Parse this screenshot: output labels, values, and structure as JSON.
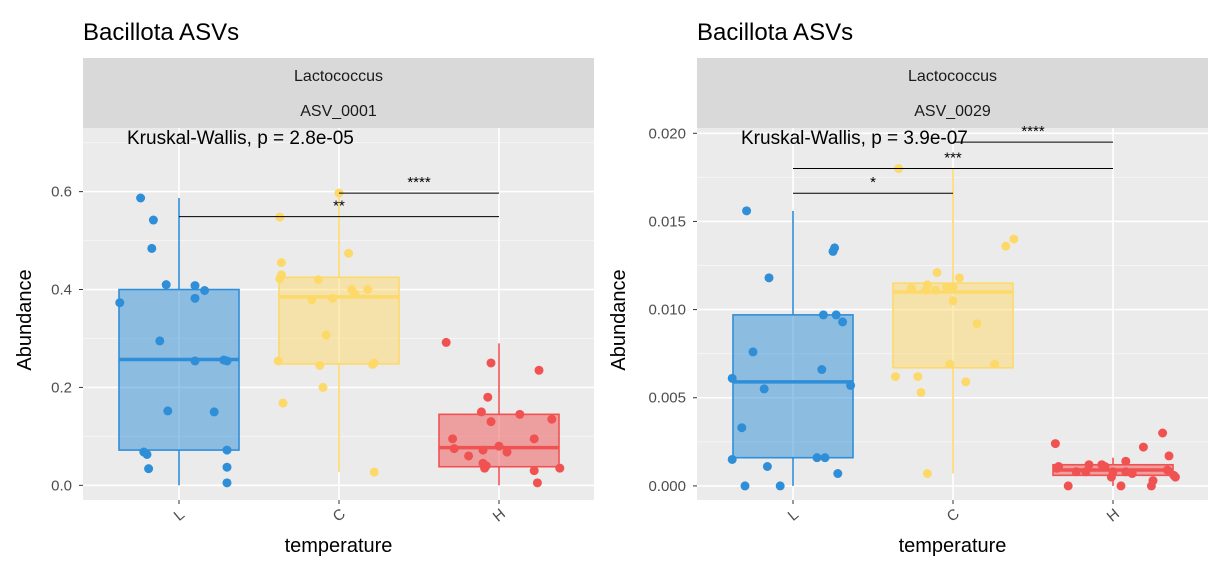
{
  "chart_data": [
    {
      "type": "box",
      "title": "Bacillota ASVs",
      "strip": [
        "Lactococcus",
        "ASV_0001"
      ],
      "xlabel": "temperature",
      "ylabel": "Abundance",
      "categories": [
        "L",
        "C",
        "H"
      ],
      "colors": {
        "L": "#2f8ed8",
        "C": "#fdd96a",
        "H": "#f05252"
      },
      "ylim": [
        -0.03,
        0.73
      ],
      "yticks": [
        0.0,
        0.2,
        0.4,
        0.6
      ],
      "ytick_labels": [
        "0.0",
        "0.2",
        "0.4",
        "0.6"
      ],
      "grid": true,
      "test_label": "Kruskal-Wallis, p = 2.8e-05",
      "boxes": [
        {
          "group": "L",
          "lower": 0.0,
          "q1": 0.072,
          "median": 0.257,
          "q3": 0.4,
          "upper": 0.587
        },
        {
          "group": "C",
          "lower": 0.027,
          "q1": 0.248,
          "median": 0.385,
          "q3": 0.425,
          "upper": 0.597
        },
        {
          "group": "H",
          "lower": 0.0,
          "q1": 0.038,
          "median": 0.077,
          "q3": 0.145,
          "upper": 0.29
        }
      ],
      "points": {
        "L": [
          [
            -0.37,
            0.373
          ],
          [
            -0.24,
            0.587
          ],
          [
            -0.16,
            0.542
          ],
          [
            -0.17,
            0.484
          ],
          [
            -0.12,
            0.295
          ],
          [
            -0.08,
            0.41
          ],
          [
            -0.22,
            0.068
          ],
          [
            -0.2,
            0.063
          ],
          [
            -0.19,
            0.034
          ],
          [
            -0.07,
            0.152
          ],
          [
            0.1,
            0.408
          ],
          [
            0.16,
            0.398
          ],
          [
            0.1,
            0.254
          ],
          [
            0.28,
            0.256
          ],
          [
            0.1,
            0.382
          ],
          [
            0.22,
            0.15
          ],
          [
            0.3,
            0.037
          ],
          [
            0.3,
            0.254
          ],
          [
            0.3,
            0.072
          ],
          [
            0.3,
            0.005
          ]
        ],
        "C": [
          [
            -0.38,
            0.254
          ],
          [
            -0.37,
            0.548
          ],
          [
            -0.37,
            0.422
          ],
          [
            -0.36,
            0.43
          ],
          [
            -0.36,
            0.455
          ],
          [
            -0.35,
            0.168
          ],
          [
            -0.17,
            0.379
          ],
          [
            -0.13,
            0.42
          ],
          [
            -0.12,
            0.245
          ],
          [
            -0.1,
            0.2
          ],
          [
            -0.08,
            0.307
          ],
          [
            -0.04,
            0.382
          ],
          [
            0.0,
            0.597
          ],
          [
            0.06,
            0.474
          ],
          [
            0.08,
            0.4
          ],
          [
            0.1,
            0.391
          ],
          [
            0.18,
            0.4
          ],
          [
            0.21,
            0.247
          ],
          [
            0.22,
            0.25
          ],
          [
            0.22,
            0.027
          ]
        ],
        "H": [
          [
            -0.33,
            0.292
          ],
          [
            -0.29,
            0.095
          ],
          [
            -0.28,
            0.075
          ],
          [
            -0.19,
            0.06
          ],
          [
            -0.11,
            0.15
          ],
          [
            -0.1,
            0.072
          ],
          [
            -0.1,
            0.045
          ],
          [
            -0.09,
            0.035
          ],
          [
            -0.08,
            0.04
          ],
          [
            -0.07,
            0.18
          ],
          [
            -0.05,
            0.13
          ],
          [
            -0.05,
            0.25
          ],
          [
            0.0,
            0.08
          ],
          [
            0.05,
            0.068
          ],
          [
            0.13,
            0.145
          ],
          [
            0.22,
            0.03
          ],
          [
            0.22,
            0.095
          ],
          [
            0.24,
            0.005
          ],
          [
            0.25,
            0.235
          ],
          [
            0.33,
            0.135
          ],
          [
            0.38,
            0.035
          ]
        ]
      },
      "comparisons": [
        {
          "from": "L",
          "to": "H",
          "y": 0.549,
          "label": "**"
        },
        {
          "from": "C",
          "to": "H",
          "y": 0.597,
          "label": "****"
        }
      ]
    },
    {
      "type": "box",
      "title": "Bacillota ASVs",
      "strip": [
        "Lactococcus",
        "ASV_0029"
      ],
      "xlabel": "temperature",
      "ylabel": "Abundance",
      "categories": [
        "L",
        "C",
        "H"
      ],
      "colors": {
        "L": "#2f8ed8",
        "C": "#fdd96a",
        "H": "#f05252"
      },
      "ylim": [
        -0.0008,
        0.0203
      ],
      "yticks": [
        0.0,
        0.005,
        0.01,
        0.015,
        0.02
      ],
      "ytick_labels": [
        "0.000",
        "0.005",
        "0.010",
        "0.015",
        "0.020"
      ],
      "grid": true,
      "test_label": "Kruskal-Wallis, p = 3.9e-07",
      "boxes": [
        {
          "group": "L",
          "lower": 0.0,
          "q1": 0.0016,
          "median": 0.0059,
          "q3": 0.0097,
          "upper": 0.0156
        },
        {
          "group": "C",
          "lower": 0.0007,
          "q1": 0.0067,
          "median": 0.011,
          "q3": 0.0115,
          "upper": 0.018
        },
        {
          "group": "H",
          "lower": 0.0,
          "q1": 0.0006,
          "median": 0.0009,
          "q3": 0.0012,
          "upper": 0.0016
        }
      ],
      "points": {
        "L": [
          [
            -0.38,
            0.0015
          ],
          [
            -0.38,
            0.0061
          ],
          [
            -0.32,
            0.0033
          ],
          [
            -0.3,
            0.0
          ],
          [
            -0.29,
            0.0156
          ],
          [
            -0.25,
            0.0076
          ],
          [
            -0.18,
            0.0055
          ],
          [
            -0.16,
            0.0011
          ],
          [
            -0.15,
            0.0118
          ],
          [
            -0.08,
            0.0
          ],
          [
            0.15,
            0.0016
          ],
          [
            0.18,
            0.0066
          ],
          [
            0.19,
            0.0097
          ],
          [
            0.2,
            0.0016
          ],
          [
            0.25,
            0.0133
          ],
          [
            0.26,
            0.0135
          ],
          [
            0.27,
            0.0097
          ],
          [
            0.28,
            0.0007
          ],
          [
            0.31,
            0.0093
          ],
          [
            0.36,
            0.0057
          ]
        ],
        "C": [
          [
            -0.36,
            0.0062
          ],
          [
            -0.34,
            0.018
          ],
          [
            -0.26,
            0.0112
          ],
          [
            -0.22,
            0.0062
          ],
          [
            -0.2,
            0.0053
          ],
          [
            -0.17,
            0.0111
          ],
          [
            -0.16,
            0.0007
          ],
          [
            -0.16,
            0.0114
          ],
          [
            -0.11,
            0.0111
          ],
          [
            -0.1,
            0.0121
          ],
          [
            -0.04,
            0.0113
          ],
          [
            -0.02,
            0.0069
          ],
          [
            0.0,
            0.0113
          ],
          [
            0.0,
            0.0105
          ],
          [
            0.04,
            0.0118
          ],
          [
            0.08,
            0.0059
          ],
          [
            0.15,
            0.0092
          ],
          [
            0.26,
            0.0069
          ],
          [
            0.33,
            0.0136
          ],
          [
            0.38,
            0.014
          ]
        ],
        "H": [
          [
            -0.36,
            0.0024
          ],
          [
            -0.35,
            0.001
          ],
          [
            -0.34,
            0.0011
          ],
          [
            -0.28,
            0.0
          ],
          [
            -0.23,
            0.0008
          ],
          [
            -0.17,
            0.0008
          ],
          [
            -0.15,
            0.0012
          ],
          [
            -0.07,
            0.0012
          ],
          [
            -0.05,
            0.0011
          ],
          [
            -0.01,
            0.0005
          ],
          [
            0.0,
            0.0008
          ],
          [
            0.05,
            0.0
          ],
          [
            0.08,
            0.0014
          ],
          [
            0.08,
            0.0008
          ],
          [
            0.12,
            0.0007
          ],
          [
            0.19,
            0.0022
          ],
          [
            0.24,
            0.0
          ],
          [
            0.25,
            0.0003
          ],
          [
            0.31,
            0.003
          ],
          [
            0.34,
            0.0009
          ],
          [
            0.35,
            0.0017
          ],
          [
            0.38,
            0.0006
          ],
          [
            0.39,
            0.0005
          ]
        ]
      },
      "comparisons": [
        {
          "from": "L",
          "to": "C",
          "y": 0.0166,
          "label": "*"
        },
        {
          "from": "L",
          "to": "H",
          "y": 0.018,
          "label": "***"
        },
        {
          "from": "C",
          "to": "H",
          "y": 0.0195,
          "label": "****"
        }
      ]
    }
  ]
}
